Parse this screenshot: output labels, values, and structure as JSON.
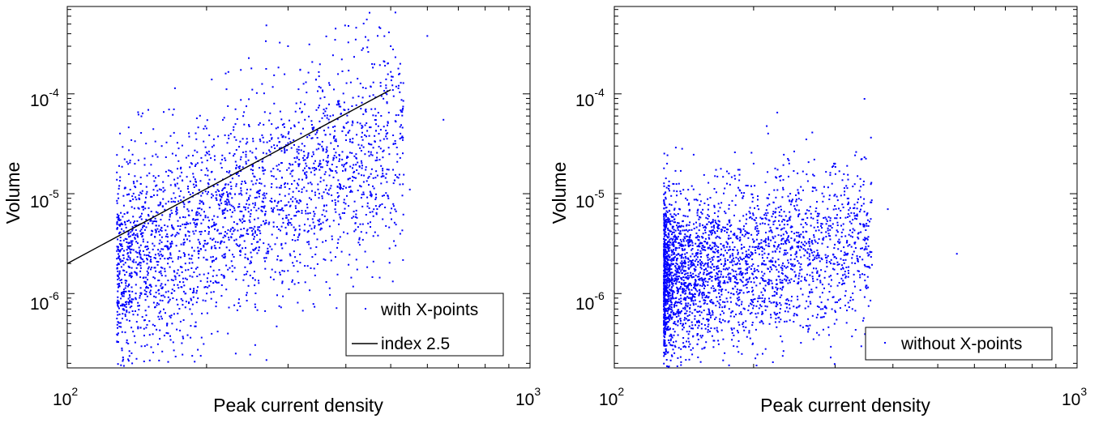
{
  "chart_data": [
    {
      "type": "scatter",
      "id": "left",
      "title": "",
      "xlabel": "Peak current density",
      "ylabel": "Volume",
      "xscale": "log",
      "yscale": "log",
      "xlim": [
        100,
        1000
      ],
      "ylim": [
        1.8e-07,
        0.00075
      ],
      "x_ticks": [
        {
          "base": "10",
          "exp": "2"
        },
        {
          "base": "10",
          "exp": "3"
        }
      ],
      "y_ticks": [
        {
          "base": "10",
          "exp": "-6"
        },
        {
          "base": "10",
          "exp": "-5"
        },
        {
          "base": "10",
          "exp": "-4"
        }
      ],
      "legend": {
        "placement": "bottom-right",
        "entries": [
          "with X-points",
          "index 2.5"
        ]
      },
      "series": [
        {
          "name": "with X-points",
          "marker": "dot",
          "color": "#0000ff",
          "points_estimated": [
            [
              130,
              4e-05
            ],
            [
              135,
              2.5e-06
            ],
            [
              140,
              1.5e-05
            ],
            [
              150,
              6e-06
            ],
            [
              160,
              3e-05
            ],
            [
              170,
              7e-05
            ],
            [
              180,
              2e-06
            ],
            [
              190,
              1.2e-05
            ],
            [
              200,
              4.5e-05
            ],
            [
              210,
              9e-06
            ],
            [
              220,
              0.00016
            ],
            [
              230,
              2.5e-05
            ],
            [
              240,
              6e-05
            ],
            [
              250,
              0.00018
            ],
            [
              260,
              1e-05
            ],
            [
              280,
              8e-05
            ],
            [
              300,
              0.0003
            ],
            [
              320,
              4e-05
            ],
            [
              350,
              0.00015
            ],
            [
              380,
              0.00045
            ],
            [
              400,
              2e-05
            ],
            [
              420,
              0.00035
            ],
            [
              450,
              0.00065
            ],
            [
              480,
              1.5e-05
            ],
            [
              500,
              0.0003
            ],
            [
              550,
              1.1e-05
            ],
            [
              600,
              0.00038
            ],
            [
              650,
              5.5e-05
            ]
          ]
        },
        {
          "name": "index 2.5",
          "type": "line",
          "color": "#000000",
          "x": [
            100,
            500
          ],
          "y": [
            2e-06,
            0.00011
          ]
        }
      ]
    },
    {
      "type": "scatter",
      "id": "right",
      "title": "",
      "xlabel": "Peak current density",
      "ylabel": "Volume",
      "xscale": "log",
      "yscale": "log",
      "xlim": [
        100,
        1000
      ],
      "ylim": [
        1.8e-07,
        0.00075
      ],
      "x_ticks": [
        {
          "base": "10",
          "exp": "2"
        },
        {
          "base": "10",
          "exp": "3"
        }
      ],
      "y_ticks": [
        {
          "base": "10",
          "exp": "-6"
        },
        {
          "base": "10",
          "exp": "-5"
        },
        {
          "base": "10",
          "exp": "-4"
        }
      ],
      "legend": {
        "placement": "bottom-right",
        "entries": [
          "without X-points"
        ]
      },
      "series": [
        {
          "name": "without X-points",
          "marker": "dot",
          "color": "#0000ff",
          "points_estimated": [
            [
              130,
              2e-05
            ],
            [
              135,
              5e-07
            ],
            [
              145,
              8e-06
            ],
            [
              155,
              3e-06
            ],
            [
              165,
              1.5e-05
            ],
            [
              180,
              2.5e-06
            ],
            [
              190,
              6e-06
            ],
            [
              200,
              2e-05
            ],
            [
              215,
              4e-05
            ],
            [
              225,
              6.5e-05
            ],
            [
              240,
              1e-05
            ],
            [
              260,
              3.5e-05
            ],
            [
              280,
              5e-06
            ],
            [
              300,
              2e-05
            ],
            [
              320,
              3e-06
            ],
            [
              350,
              1.2e-06
            ],
            [
              390,
              7e-06
            ],
            [
              550,
              2.5e-06
            ]
          ]
        }
      ]
    }
  ]
}
